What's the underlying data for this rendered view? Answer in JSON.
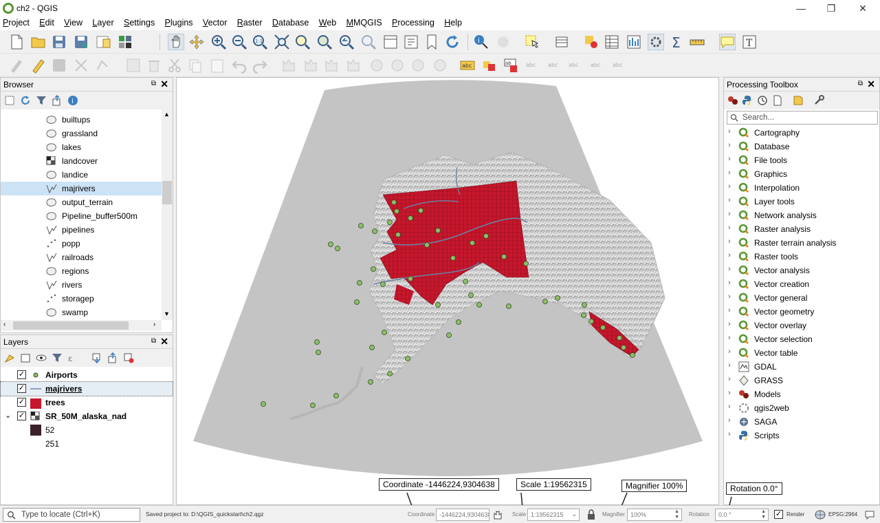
{
  "window": {
    "title": "ch2 - QGIS",
    "minimize": "—",
    "maximize": "❐",
    "close": "✕"
  },
  "menu": [
    "Project",
    "Edit",
    "View",
    "Layer",
    "Settings",
    "Plugins",
    "Vector",
    "Raster",
    "Database",
    "Web",
    "MMQGIS",
    "Processing",
    "Help"
  ],
  "browser": {
    "title": "Browser",
    "items": [
      {
        "label": "builtups",
        "icon": "polygon-layer-icon"
      },
      {
        "label": "grassland",
        "icon": "polygon-layer-icon"
      },
      {
        "label": "lakes",
        "icon": "polygon-layer-icon"
      },
      {
        "label": "landcover",
        "icon": "raster-layer-icon"
      },
      {
        "label": "landice",
        "icon": "polygon-layer-icon"
      },
      {
        "label": "majrivers",
        "icon": "line-layer-icon"
      },
      {
        "label": "output_terrain",
        "icon": "polygon-layer-icon"
      },
      {
        "label": "Pipeline_buffer500m",
        "icon": "polygon-layer-icon"
      },
      {
        "label": "pipelines",
        "icon": "line-layer-icon"
      },
      {
        "label": "popp",
        "icon": "point-layer-icon"
      },
      {
        "label": "railroads",
        "icon": "line-layer-icon"
      },
      {
        "label": "regions",
        "icon": "polygon-layer-icon"
      },
      {
        "label": "rivers",
        "icon": "line-layer-icon"
      },
      {
        "label": "storagep",
        "icon": "point-layer-icon"
      },
      {
        "label": "swamp",
        "icon": "polygon-layer-icon"
      }
    ],
    "selected": "majrivers"
  },
  "layers": {
    "title": "Layers",
    "items": [
      {
        "label": "Airports",
        "checked": true,
        "symbol": "green-point"
      },
      {
        "label": "majrivers",
        "checked": true,
        "symbol": "line"
      },
      {
        "label": "trees",
        "checked": true,
        "symbol": "red-fill"
      },
      {
        "label": "SR_50M_alaska_nad",
        "checked": true,
        "symbol": "raster"
      }
    ],
    "legend": [
      {
        "label": "52",
        "color": "#3a2228"
      },
      {
        "label": "251",
        "color": "#ffffff"
      }
    ]
  },
  "toolbox": {
    "title": "Processing Toolbox",
    "search_placeholder": "Search...",
    "items": [
      {
        "label": "Cartography",
        "icon": "qgis-icon"
      },
      {
        "label": "Database",
        "icon": "qgis-icon"
      },
      {
        "label": "File tools",
        "icon": "qgis-icon"
      },
      {
        "label": "Graphics",
        "icon": "qgis-icon"
      },
      {
        "label": "Interpolation",
        "icon": "qgis-icon"
      },
      {
        "label": "Layer tools",
        "icon": "qgis-icon"
      },
      {
        "label": "Network analysis",
        "icon": "qgis-icon"
      },
      {
        "label": "Raster analysis",
        "icon": "qgis-icon"
      },
      {
        "label": "Raster terrain analysis",
        "icon": "qgis-icon"
      },
      {
        "label": "Raster tools",
        "icon": "qgis-icon"
      },
      {
        "label": "Vector analysis",
        "icon": "qgis-icon"
      },
      {
        "label": "Vector creation",
        "icon": "qgis-icon"
      },
      {
        "label": "Vector general",
        "icon": "qgis-icon"
      },
      {
        "label": "Vector geometry",
        "icon": "qgis-icon"
      },
      {
        "label": "Vector overlay",
        "icon": "qgis-icon"
      },
      {
        "label": "Vector selection",
        "icon": "qgis-icon"
      },
      {
        "label": "Vector table",
        "icon": "qgis-icon"
      },
      {
        "label": "GDAL",
        "icon": "gdal-icon"
      },
      {
        "label": "GRASS",
        "icon": "grass-icon"
      },
      {
        "label": "Models",
        "icon": "models-icon"
      },
      {
        "label": "qgis2web",
        "icon": "qgis2web-icon"
      },
      {
        "label": "SAGA",
        "icon": "saga-icon"
      },
      {
        "label": "Scripts",
        "icon": "python-icon"
      }
    ]
  },
  "status": {
    "locate_placeholder": "Type to locate (Ctrl+K)",
    "message": "Saved project to: D:\\QGIS_quickstart\\ch2.qgz",
    "coordinate_label": "Coordinate",
    "coordinate_value": "-1446224,9304638",
    "scale_label": "Scale",
    "scale_value": "1:19562315",
    "magnifier_label": "Magnifier",
    "magnifier_value": "100%",
    "rotation_label": "Rotation",
    "rotation_value": "0.0 °",
    "render_label": "Render",
    "crs": "EPSG:2964"
  },
  "callouts": {
    "coordinate": "Coordinate  -1446224,9304638",
    "scale": "Scale  1:19562315",
    "magnifier": "Magnifier 100%",
    "rotation": "Rotation 0.0°"
  }
}
